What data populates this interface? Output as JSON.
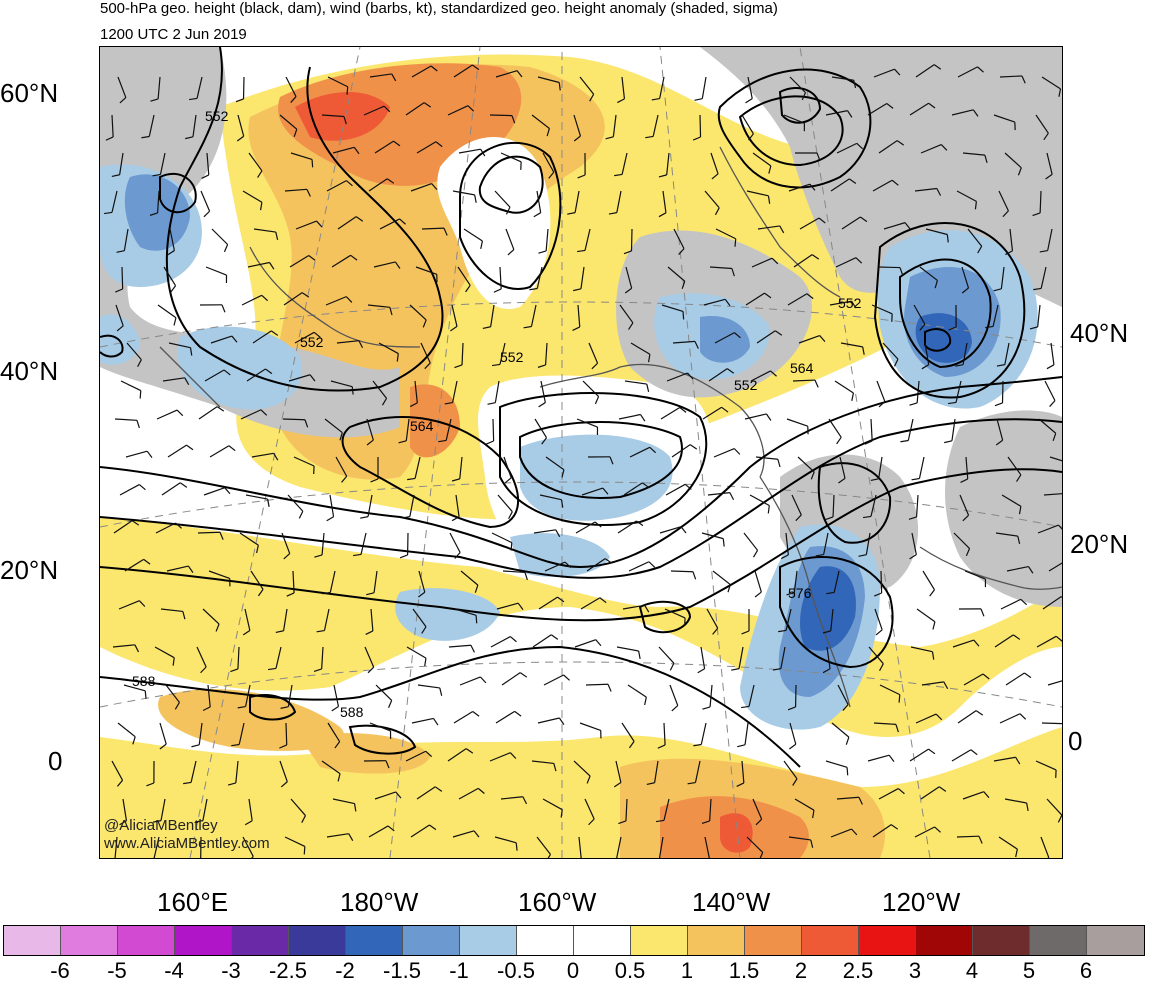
{
  "title": "500-hPa geo. height (black, dam), wind (barbs, kt), standardized geo. height anomaly (shaded, sigma)",
  "valid_time": "1200 UTC 2 Jun 2019",
  "credit": {
    "handle": "@AliciaMBentley",
    "website": "www.AliciaMBentley.com"
  },
  "lat_labels_left": [
    "60°N",
    "40°N",
    "20°N",
    "0"
  ],
  "lat_labels_right": [
    "40°N",
    "20°N",
    "0"
  ],
  "lon_labels": [
    "160°E",
    "180°W",
    "160°W",
    "140°W",
    "120°W"
  ],
  "contour_labels": [
    "552",
    "552",
    "552",
    "552",
    "552",
    "564",
    "564",
    "576",
    "588",
    "588"
  ],
  "colorbar": {
    "labels": [
      "-6",
      "-5",
      "-4",
      "-3",
      "-2.5",
      "-2",
      "-1.5",
      "-1",
      "-0.5",
      "0",
      "0.5",
      "1",
      "1.5",
      "2",
      "2.5",
      "3",
      "4",
      "5",
      "6"
    ],
    "colors": [
      "#e8b8e8",
      "#e07ce0",
      "#d24ad2",
      "#b016c8",
      "#6a2aa8",
      "#3a3a9a",
      "#3266b8",
      "#6c9ad0",
      "#a8cbe6",
      "#ffffff",
      "#ffffff",
      "#fbe66e",
      "#f5c35e",
      "#f0914a",
      "#ee5a36",
      "#e81414",
      "#a00606",
      "#6e2c2c",
      "#6e6a6a",
      "#a89e9e"
    ]
  },
  "colors": {
    "land_gray": "#c4c4c4",
    "contour": "#000000",
    "coast": "#555555"
  }
}
